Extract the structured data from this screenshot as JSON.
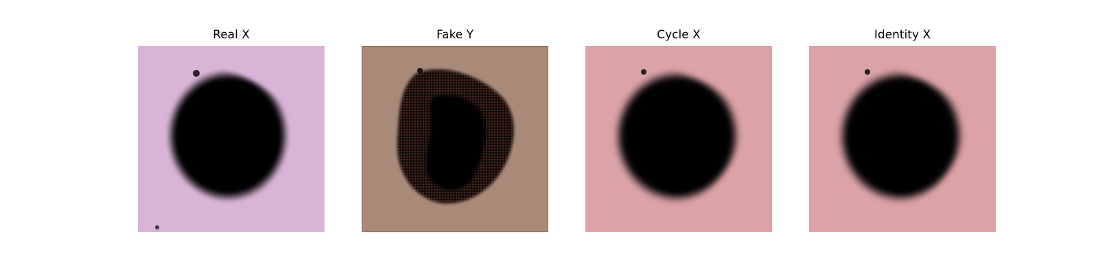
{
  "figure": {
    "panels": [
      {
        "title": "Real X",
        "image_icon": "dermoscopy-lesion-real-image",
        "colors": {
          "background": "#d9b4d6",
          "lesion_outer": "#b07a3c",
          "lesion_mid": "#8a4a22",
          "lesion_core": "#4a2418"
        }
      },
      {
        "title": "Fake Y",
        "image_icon": "dermoscopy-lesion-fake-image",
        "colors": {
          "background": "#a98a78",
          "lesion_outer": "#b88a3a",
          "lesion_mid": "#7a6a30",
          "lesion_core": "#46342a"
        }
      },
      {
        "title": "Cycle X",
        "image_icon": "dermoscopy-lesion-cycle-image",
        "colors": {
          "background": "#dba2a8",
          "lesion_outer": "#cf7a7c",
          "lesion_mid": "#c56868",
          "lesion_core": "#b06a6e"
        }
      },
      {
        "title": "Identity X",
        "image_icon": "dermoscopy-lesion-identity-image",
        "colors": {
          "background": "#dba2a8",
          "lesion_outer": "#cf7a7c",
          "lesion_mid": "#c56868",
          "lesion_core": "#b06a6e"
        }
      }
    ]
  }
}
